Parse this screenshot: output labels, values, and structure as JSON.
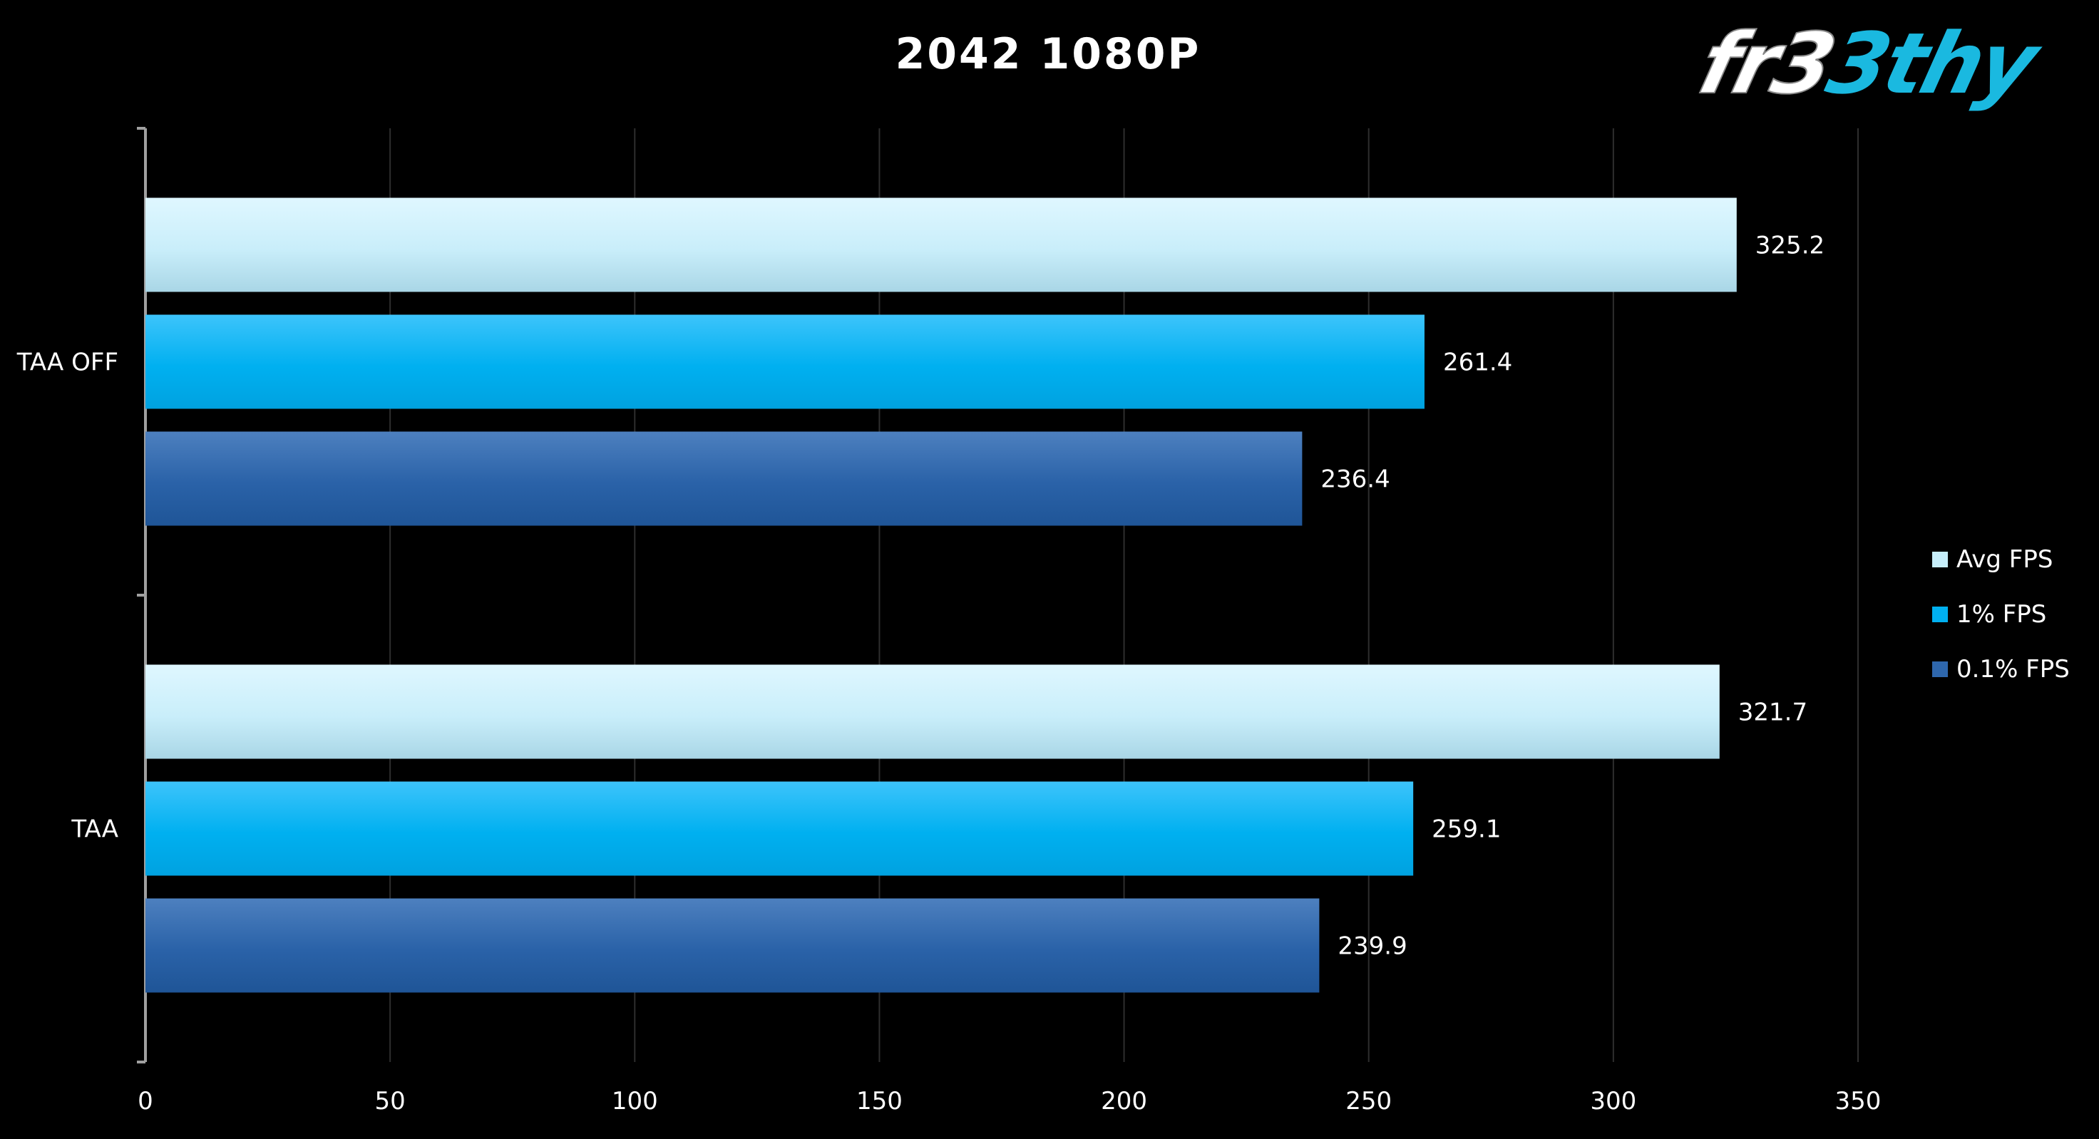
{
  "chart_data": {
    "type": "bar",
    "orientation": "horizontal",
    "title": "2042 1080P",
    "xlabel": "",
    "ylabel": "",
    "xlim": [
      0,
      350
    ],
    "x_ticks": [
      0,
      50,
      100,
      150,
      200,
      250,
      300,
      350
    ],
    "categories": [
      "TAA OFF",
      "TAA"
    ],
    "series": [
      {
        "name": "Avg FPS",
        "values": [
          325.2,
          321.7
        ],
        "color": "#c6eefa"
      },
      {
        "name": "1% FPS",
        "values": [
          261.4,
          259.1
        ],
        "color": "#00b0f0"
      },
      {
        "name": "0.1% FPS",
        "values": [
          236.4,
          239.9
        ],
        "color": "#2e67ad"
      }
    ],
    "data_labels": true,
    "grid": true,
    "legend_position": "right"
  },
  "logo": {
    "text_part1": "fr3",
    "text_part2": "3thy",
    "color_part1": "#ffffff",
    "color_part2": "#1ab9e0"
  }
}
